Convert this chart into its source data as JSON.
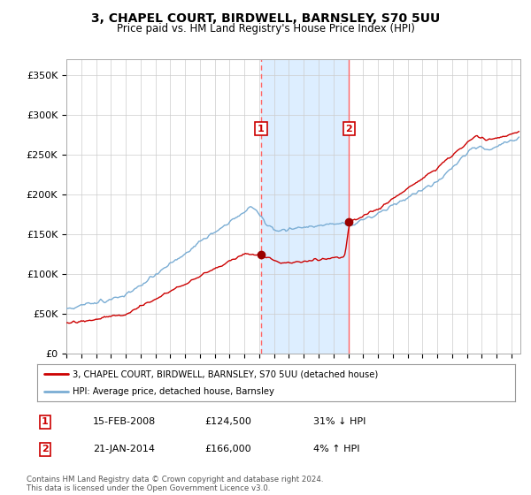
{
  "title": "3, CHAPEL COURT, BIRDWELL, BARNSLEY, S70 5UU",
  "subtitle": "Price paid vs. HM Land Registry's House Price Index (HPI)",
  "ylim": [
    0,
    370000
  ],
  "yticks": [
    0,
    50000,
    100000,
    150000,
    200000,
    250000,
    300000,
    350000
  ],
  "ytick_labels": [
    "£0",
    "£50K",
    "£100K",
    "£150K",
    "£200K",
    "£250K",
    "£300K",
    "£350K"
  ],
  "sale1_price": 124500,
  "sale1_x": 2008.12,
  "sale2_price": 166000,
  "sale2_x": 2014.05,
  "hpi_line_color": "#7aadd4",
  "sale_line_color": "#cc0000",
  "sale_dot_color": "#990000",
  "shaded_region_color": "#ddeeff",
  "dashed_line_color": "#ff6666",
  "legend_entries": [
    "3, CHAPEL COURT, BIRDWELL, BARNSLEY, S70 5UU (detached house)",
    "HPI: Average price, detached house, Barnsley"
  ],
  "table_rows": [
    [
      "1",
      "15-FEB-2008",
      "£124,500",
      "31% ↓ HPI"
    ],
    [
      "2",
      "21-JAN-2014",
      "£166,000",
      "4% ↑ HPI"
    ]
  ],
  "footnote": "Contains HM Land Registry data © Crown copyright and database right 2024.\nThis data is licensed under the Open Government Licence v3.0.",
  "background_color": "#ffffff",
  "plot_bg_color": "#ffffff",
  "grid_color": "#cccccc"
}
